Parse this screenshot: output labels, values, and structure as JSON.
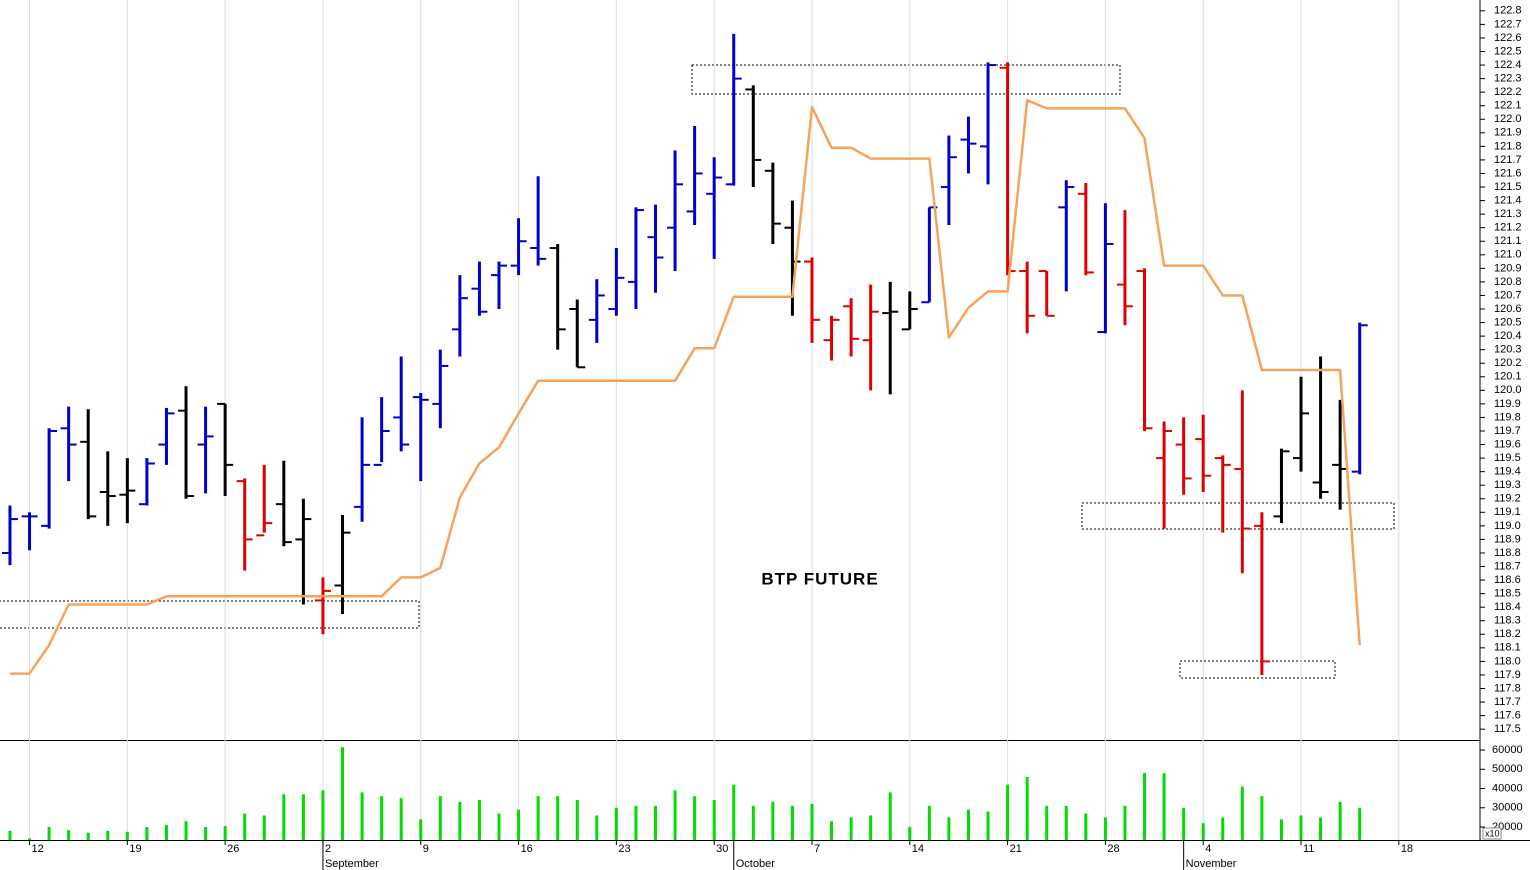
{
  "chart_data": [
    {
      "type": "ohlc",
      "title": "BTP FUTURE",
      "xlim": [
        -0.51,
        75.15
      ],
      "ylim": [
        117.42,
        122.88
      ],
      "yticks": [
        117.5,
        117.6,
        117.7,
        117.8,
        117.9,
        {
          "value": 118,
          "label": "118.0"
        },
        118.1,
        118.2,
        118.3,
        118.4,
        118.5,
        118.6,
        118.7,
        118.8,
        118.9,
        {
          "value": 119,
          "label": "119.0"
        },
        119.1,
        119.2,
        119.3,
        119.4,
        119.5,
        119.6,
        119.7,
        119.8,
        119.9,
        {
          "value": 120,
          "label": "120.0"
        },
        120.1,
        120.2,
        120.3,
        120.4,
        120.5,
        120.6,
        120.7,
        120.8,
        120.9,
        {
          "value": 121,
          "label": "121.0"
        },
        121.1,
        121.2,
        121.3,
        121.4,
        121.5,
        121.6,
        121.7,
        121.8,
        121.9,
        {
          "value": 122,
          "label": "122.0"
        },
        122.1,
        122.2,
        122.3,
        122.4,
        122.5,
        122.6,
        122.7,
        122.8
      ],
      "open": [
        118.8,
        119.07,
        119.0,
        119.72,
        119.62,
        119.25,
        119.23,
        119.16,
        119.6,
        119.85,
        119.6,
        119.9,
        119.33,
        118.93,
        119.16,
        118.9,
        118.45,
        118.56,
        119.14,
        119.45,
        119.8,
        119.95,
        119.9,
        120.45,
        120.75,
        120.85,
        120.92,
        121.05,
        121.05,
        120.6,
        120.52,
        120.6,
        120.8,
        121.13,
        121.2,
        121.32,
        121.45,
        121.52,
        122.22,
        121.62,
        121.2,
        120.95,
        120.37,
        120.62,
        120.37,
        120.57,
        120.45,
        120.65,
        121.5,
        121.85,
        121.8,
        122.38,
        120.88,
        120.88,
        121.35,
        121.45,
        120.43,
        120.78,
        120.88,
        119.5,
        119.6,
        119.64,
        119.5,
        119.42,
        119.0,
        119.07,
        119.5,
        119.32,
        119.45,
        119.4
      ],
      "high": [
        119.15,
        119.1,
        119.72,
        119.88,
        119.86,
        119.55,
        119.5,
        119.5,
        119.87,
        120.03,
        119.88,
        119.9,
        119.35,
        119.45,
        119.48,
        119.2,
        118.62,
        119.08,
        119.8,
        119.95,
        120.25,
        119.98,
        120.3,
        120.85,
        120.95,
        120.95,
        121.27,
        121.58,
        121.08,
        120.67,
        120.82,
        121.05,
        121.35,
        121.37,
        121.77,
        121.95,
        121.72,
        122.63,
        122.25,
        121.68,
        121.4,
        120.98,
        120.55,
        120.68,
        120.78,
        120.8,
        120.73,
        121.35,
        121.88,
        122.02,
        122.42,
        122.42,
        120.95,
        120.88,
        121.55,
        121.53,
        121.38,
        121.33,
        120.9,
        119.77,
        119.8,
        119.82,
        119.52,
        120.0,
        119.1,
        119.57,
        120.1,
        120.25,
        119.93,
        120.5
      ],
      "low": [
        118.71,
        118.82,
        118.98,
        119.33,
        119.05,
        119.0,
        119.02,
        119.15,
        119.45,
        119.2,
        119.24,
        119.22,
        118.67,
        118.95,
        118.85,
        118.42,
        118.2,
        118.35,
        119.03,
        119.47,
        119.55,
        119.33,
        119.72,
        120.25,
        120.55,
        120.6,
        120.85,
        120.92,
        120.3,
        120.17,
        120.35,
        120.55,
        120.6,
        120.72,
        120.88,
        121.22,
        120.97,
        121.51,
        121.5,
        121.08,
        120.55,
        120.35,
        120.22,
        120.25,
        120.0,
        119.97,
        120.45,
        120.65,
        121.22,
        121.6,
        121.52,
        120.85,
        120.42,
        120.55,
        120.73,
        120.85,
        120.42,
        120.48,
        119.7,
        118.98,
        119.23,
        119.25,
        118.95,
        118.65,
        117.9,
        119.02,
        119.4,
        119.2,
        119.12,
        119.38
      ],
      "close": [
        119.05,
        119.07,
        119.7,
        119.6,
        119.07,
        119.22,
        119.26,
        119.46,
        119.83,
        119.22,
        119.66,
        119.45,
        118.9,
        119.02,
        118.88,
        119.05,
        118.52,
        118.95,
        119.45,
        119.7,
        119.6,
        119.93,
        120.18,
        120.68,
        120.58,
        120.92,
        121.1,
        120.97,
        120.45,
        120.17,
        120.7,
        120.83,
        121.33,
        120.98,
        121.52,
        121.6,
        121.57,
        122.3,
        121.7,
        121.23,
        120.95,
        120.52,
        120.52,
        120.38,
        120.58,
        120.58,
        120.6,
        121.35,
        121.72,
        121.82,
        122.4,
        120.88,
        120.55,
        120.55,
        121.5,
        120.87,
        121.08,
        120.62,
        119.72,
        119.7,
        119.35,
        119.37,
        119.45,
        118.98,
        118.0,
        119.55,
        119.83,
        119.25,
        119.42,
        120.48
      ],
      "colors": [
        "#0000cc",
        "#0000cc",
        "#0000cc",
        "#0000cc",
        "#000000",
        "#000000",
        "#000000",
        "#0000cc",
        "#0000cc",
        "#000000",
        "#0000cc",
        "#000000",
        "#e00000",
        "#e00000",
        "#000000",
        "#000000",
        "#e00000",
        "#000000",
        "#0000cc",
        "#0000cc",
        "#0000cc",
        "#0000cc",
        "#0000cc",
        "#0000cc",
        "#0000cc",
        "#0000cc",
        "#0000cc",
        "#0000cc",
        "#000000",
        "#000000",
        "#0000cc",
        "#0000cc",
        "#0000cc",
        "#0000cc",
        "#0000cc",
        "#0000cc",
        "#0000cc",
        "#0000cc",
        "#000000",
        "#000000",
        "#000000",
        "#e00000",
        "#e00000",
        "#e00000",
        "#e00000",
        "#000000",
        "#000000",
        "#0000cc",
        "#0000cc",
        "#0000cc",
        "#0000cc",
        "#e00000",
        "#e00000",
        "#e00000",
        "#0000cc",
        "#e00000",
        "#0000cc",
        "#e00000",
        "#e00000",
        "#e00000",
        "#e00000",
        "#e00000",
        "#e00000",
        "#e00000",
        "#e00000",
        "#000000",
        "#000000",
        "#000000",
        "#000000",
        "#0000cc"
      ],
      "line": {
        "color": "#f5a35c",
        "values": [
          117.91,
          117.91,
          118.12,
          118.42,
          118.42,
          118.42,
          118.42,
          118.42,
          118.48,
          118.48,
          118.48,
          118.48,
          118.48,
          118.48,
          118.48,
          118.48,
          118.48,
          118.48,
          118.48,
          118.48,
          118.62,
          118.62,
          118.69,
          119.21,
          119.46,
          119.58,
          119.83,
          120.07,
          120.07,
          120.07,
          120.07,
          120.07,
          120.07,
          120.07,
          120.07,
          120.31,
          120.31,
          120.69,
          120.69,
          120.69,
          120.69,
          122.09,
          121.79,
          121.79,
          121.71,
          121.71,
          121.71,
          121.71,
          120.39,
          120.61,
          120.73,
          120.73,
          122.14,
          122.08,
          122.08,
          122.08,
          122.08,
          122.08,
          121.86,
          120.92,
          120.92,
          120.92,
          120.7,
          120.7,
          120.15,
          120.15,
          120.15,
          120.15,
          120.15,
          118.12
        ]
      }
    },
    {
      "type": "bar",
      "color": "#00dd00",
      "axis_note": "x10",
      "xlim": [
        -0.51,
        75.15
      ],
      "ylim": [
        13250,
        64700
      ],
      "yticks": [
        20000,
        30000,
        40000,
        50000,
        60000
      ],
      "categories": [
        null,
        "12",
        null,
        null,
        null,
        null,
        "19",
        null,
        null,
        null,
        null,
        "26",
        null,
        null,
        null,
        null,
        "2",
        null,
        null,
        null,
        null,
        "9",
        null,
        null,
        null,
        null,
        "16",
        null,
        null,
        null,
        null,
        "23",
        null,
        null,
        null,
        null,
        "30",
        null,
        null,
        null,
        null,
        "7",
        null,
        null,
        null,
        null,
        "14",
        null,
        null,
        null,
        null,
        "21",
        null,
        null,
        null,
        null,
        "28",
        null,
        null,
        null,
        null,
        "4",
        null,
        null,
        null,
        null,
        "11",
        null,
        null,
        null,
        null,
        "18",
        null,
        null,
        null,
        null
      ],
      "months": [
        {
          "value": 16,
          "label": "September"
        },
        {
          "value": 37,
          "label": "October"
        },
        {
          "value": 60,
          "label": "November"
        }
      ],
      "values": [
        18000,
        14000,
        20000,
        18500,
        17000,
        18000,
        17500,
        20000,
        21000,
        23000,
        20000,
        20500,
        27000,
        26000,
        37000,
        37000,
        39000,
        61500,
        38000,
        36000,
        35000,
        24000,
        36000,
        33000,
        34000,
        27000,
        29000,
        36000,
        36000,
        34000,
        26000,
        30000,
        31000,
        31000,
        39000,
        36000,
        34000,
        42000,
        31000,
        33000,
        31000,
        32000,
        23000,
        25000,
        26000,
        38000,
        20000,
        31000,
        25000,
        29000,
        28000,
        42000,
        46000,
        31000,
        31000,
        27000,
        25000,
        31000,
        48000,
        48000,
        30000,
        22000,
        25000,
        41000,
        36000,
        24000,
        26000,
        25000,
        33000,
        30000,
        null,
        null,
        null,
        null,
        null,
        null
      ]
    }
  ]
}
